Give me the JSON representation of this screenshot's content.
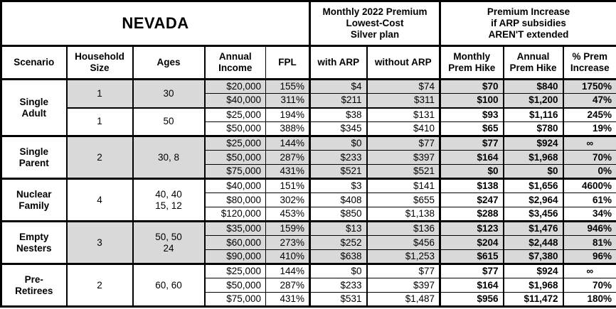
{
  "table": {
    "region_title": "NEVADA",
    "premium_group_header": "Monthly 2022 Premium\nLowest-Cost\nSilver plan",
    "increase_group_header": "Premium Increase\nif ARP subsidies\nAREN'T extended",
    "columns": [
      "Scenario",
      "Household\nSize",
      "Ages",
      "Annual\nIncome",
      "FPL",
      "with ARP",
      "without ARP",
      "Monthly\nPrem Hike",
      "Annual\nPrem Hike",
      "% Prem\nIncrease"
    ],
    "colors": {
      "shaded_row": "#d9d9d9",
      "border": "#000000",
      "background": "#ffffff"
    },
    "groups": [
      {
        "scenario": "Single\nAdult",
        "subgroups": [
          {
            "household_size": "1",
            "ages": "30",
            "shaded": true,
            "rows": [
              {
                "income": "$20,000",
                "fpl": "155%",
                "with_arp": "$4",
                "without_arp": "$74",
                "monthly_hike": "$70",
                "annual_hike": "$840",
                "pct_increase": "1750%"
              },
              {
                "income": "$40,000",
                "fpl": "311%",
                "with_arp": "$211",
                "without_arp": "$311",
                "monthly_hike": "$100",
                "annual_hike": "$1,200",
                "pct_increase": "47%"
              }
            ]
          },
          {
            "household_size": "1",
            "ages": "50",
            "shaded": false,
            "rows": [
              {
                "income": "$25,000",
                "fpl": "194%",
                "with_arp": "$38",
                "without_arp": "$131",
                "monthly_hike": "$93",
                "annual_hike": "$1,116",
                "pct_increase": "245%"
              },
              {
                "income": "$50,000",
                "fpl": "388%",
                "with_arp": "$345",
                "without_arp": "$410",
                "monthly_hike": "$65",
                "annual_hike": "$780",
                "pct_increase": "19%"
              }
            ]
          }
        ]
      },
      {
        "scenario": "Single\nParent",
        "subgroups": [
          {
            "household_size": "2",
            "ages": "30, 8",
            "shaded": true,
            "rows": [
              {
                "income": "$25,000",
                "fpl": "144%",
                "with_arp": "$0",
                "without_arp": "$77",
                "monthly_hike": "$77",
                "annual_hike": "$924",
                "pct_increase": "∞"
              },
              {
                "income": "$50,000",
                "fpl": "287%",
                "with_arp": "$233",
                "without_arp": "$397",
                "monthly_hike": "$164",
                "annual_hike": "$1,968",
                "pct_increase": "70%"
              },
              {
                "income": "$75,000",
                "fpl": "431%",
                "with_arp": "$521",
                "without_arp": "$521",
                "monthly_hike": "$0",
                "annual_hike": "$0",
                "pct_increase": "0%"
              }
            ]
          }
        ]
      },
      {
        "scenario": "Nuclear\nFamily",
        "subgroups": [
          {
            "household_size": "4",
            "ages": "40, 40\n15, 12",
            "shaded": false,
            "rows": [
              {
                "income": "$40,000",
                "fpl": "151%",
                "with_arp": "$3",
                "without_arp": "$141",
                "monthly_hike": "$138",
                "annual_hike": "$1,656",
                "pct_increase": "4600%"
              },
              {
                "income": "$80,000",
                "fpl": "302%",
                "with_arp": "$408",
                "without_arp": "$655",
                "monthly_hike": "$247",
                "annual_hike": "$2,964",
                "pct_increase": "61%"
              },
              {
                "income": "$120,000",
                "fpl": "453%",
                "with_arp": "$850",
                "without_arp": "$1,138",
                "monthly_hike": "$288",
                "annual_hike": "$3,456",
                "pct_increase": "34%"
              }
            ]
          }
        ]
      },
      {
        "scenario": "Empty\nNesters",
        "subgroups": [
          {
            "household_size": "3",
            "ages": "50, 50\n24",
            "shaded": true,
            "rows": [
              {
                "income": "$35,000",
                "fpl": "159%",
                "with_arp": "$13",
                "without_arp": "$136",
                "monthly_hike": "$123",
                "annual_hike": "$1,476",
                "pct_increase": "946%"
              },
              {
                "income": "$60,000",
                "fpl": "273%",
                "with_arp": "$252",
                "without_arp": "$456",
                "monthly_hike": "$204",
                "annual_hike": "$2,448",
                "pct_increase": "81%"
              },
              {
                "income": "$90,000",
                "fpl": "410%",
                "with_arp": "$638",
                "without_arp": "$1,253",
                "monthly_hike": "$615",
                "annual_hike": "$7,380",
                "pct_increase": "96%"
              }
            ]
          }
        ]
      },
      {
        "scenario": "Pre-\nRetirees",
        "subgroups": [
          {
            "household_size": "2",
            "ages": "60, 60",
            "shaded": false,
            "rows": [
              {
                "income": "$25,000",
                "fpl": "144%",
                "with_arp": "$0",
                "without_arp": "$77",
                "monthly_hike": "$77",
                "annual_hike": "$924",
                "pct_increase": "∞"
              },
              {
                "income": "$50,000",
                "fpl": "287%",
                "with_arp": "$233",
                "without_arp": "$397",
                "monthly_hike": "$164",
                "annual_hike": "$1,968",
                "pct_increase": "70%"
              },
              {
                "income": "$75,000",
                "fpl": "431%",
                "with_arp": "$531",
                "without_arp": "$1,487",
                "monthly_hike": "$956",
                "annual_hike": "$11,472",
                "pct_increase": "180%"
              }
            ]
          }
        ]
      }
    ]
  }
}
